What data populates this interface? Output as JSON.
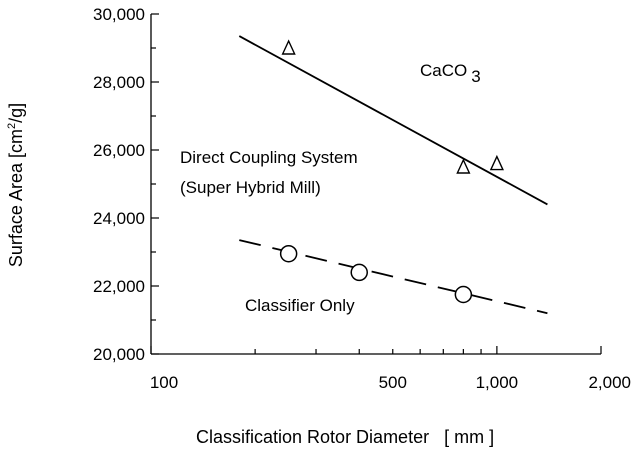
{
  "chart_data": {
    "type": "scatter",
    "xscale": "log",
    "xlim": [
      100,
      2000
    ],
    "ylim": [
      20000,
      30000
    ],
    "xlabel": "Classification Rotor Diameter   [ mm ]",
    "ylabel": "Surface Area [cm²/g]",
    "x_tick_labels": [
      {
        "value": 100,
        "label": "100"
      },
      {
        "value": 500,
        "label": "500"
      },
      {
        "value": 1000,
        "label": "1,000"
      },
      {
        "value": 2000,
        "label": "2,000"
      }
    ],
    "y_tick_labels": [
      {
        "value": 20000,
        "label": "20,000"
      },
      {
        "value": 22000,
        "label": "22,000"
      },
      {
        "value": 24000,
        "label": "24,000"
      },
      {
        "value": 26000,
        "label": "26,000"
      },
      {
        "value": 28000,
        "label": "28,000"
      },
      {
        "value": 30000,
        "label": "30,000"
      }
    ],
    "grid": false,
    "series": [
      {
        "name": "Direct Coupling System (Super Hybrid Mill)",
        "marker": "triangle",
        "line_style": "solid",
        "points": [
          [
            250,
            29000
          ],
          [
            800,
            25500
          ],
          [
            1000,
            25600
          ]
        ],
        "trend": [
          [
            180,
            29350
          ],
          [
            1400,
            24400
          ]
        ]
      },
      {
        "name": "Classifier Only",
        "marker": "circle",
        "line_style": "dashed",
        "points": [
          [
            250,
            22950
          ],
          [
            400,
            22400
          ],
          [
            800,
            21750
          ]
        ],
        "trend": [
          [
            180,
            23350
          ],
          [
            1400,
            21200
          ]
        ]
      }
    ],
    "annotations": [
      {
        "text": "CaCO",
        "subscript": "3"
      },
      {
        "text": "Direct Coupling System"
      },
      {
        "text": "(Super Hybrid Mill)"
      },
      {
        "text": "Classifier Only"
      }
    ]
  }
}
